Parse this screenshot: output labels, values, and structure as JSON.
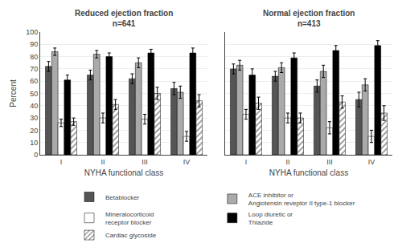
{
  "chart_data": [
    {
      "type": "bar",
      "title": "Reduced ejection fraction",
      "subtitle": "n=641",
      "xlabel": "NYHA functional class",
      "ylabel": "Percent",
      "categories": [
        "I",
        "II",
        "III",
        "IV"
      ],
      "series": [
        {
          "name": "Betablocker",
          "color": "#555555",
          "values": [
            72,
            65,
            62,
            54
          ],
          "errors": [
            4,
            4,
            4,
            5
          ]
        },
        {
          "name": "ACE inhibitor or\nAngiotensin reveptor II type-1 blocker",
          "color": "#aaaaaa",
          "values": [
            84,
            82,
            75,
            51
          ],
          "errors": [
            3,
            3,
            4,
            5
          ]
        },
        {
          "name": "Mineralocorticoid\nreceptor blocker",
          "color": "#ffffff",
          "values": [
            26,
            30,
            29,
            15
          ],
          "errors": [
            3,
            4,
            4,
            4
          ]
        },
        {
          "name": "Loop diuretic or\nThiazide",
          "color": "#000000",
          "values": [
            61,
            80,
            83,
            83
          ],
          "errors": [
            4,
            3,
            3,
            4
          ]
        },
        {
          "name": "Cardiac glycoside",
          "color": "#888888",
          "marker": "hatch",
          "values": [
            27,
            41,
            50,
            44
          ],
          "errors": [
            3,
            4,
            5,
            5
          ]
        }
      ],
      "ylim": [
        0,
        100
      ],
      "yticks": [
        0,
        10,
        20,
        30,
        40,
        50,
        60,
        70,
        80,
        90,
        100
      ],
      "grid": true,
      "legend": "bottom"
    },
    {
      "type": "bar",
      "title": "Normal ejection fraction",
      "subtitle": "n=413",
      "xlabel": "NYHA functional class",
      "categories": [
        "I",
        "II",
        "III",
        "IV"
      ],
      "series": [
        {
          "name": "Betablocker",
          "color": "#555555",
          "values": [
            70,
            64,
            56,
            45
          ],
          "errors": [
            4,
            4,
            5,
            6
          ]
        },
        {
          "name": "ACE inhibitor or\nAngiotensin reveptor II type-1 blocker",
          "color": "#aaaaaa",
          "values": [
            73,
            71,
            68,
            57
          ],
          "errors": [
            4,
            4,
            5,
            5
          ]
        },
        {
          "name": "Mineralocorticoid\nreceptor blocker",
          "color": "#ffffff",
          "values": [
            33,
            30,
            22,
            15
          ],
          "errors": [
            4,
            4,
            5,
            5
          ]
        },
        {
          "name": "Loop diuretic or\nThiazide",
          "color": "#000000",
          "values": [
            65,
            79,
            85,
            89
          ],
          "errors": [
            5,
            4,
            4,
            4
          ]
        },
        {
          "name": "Cardiac glycoside",
          "color": "#888888",
          "marker": "hatch",
          "values": [
            42,
            30,
            43,
            34
          ],
          "errors": [
            5,
            4,
            5,
            6
          ]
        }
      ],
      "ylim": [
        0,
        100
      ],
      "yticks": [
        0,
        10,
        20,
        30,
        40,
        50,
        60,
        70,
        80,
        90,
        100
      ],
      "grid": true,
      "legend": "bottom",
      "tick_labels": "x"
    }
  ]
}
